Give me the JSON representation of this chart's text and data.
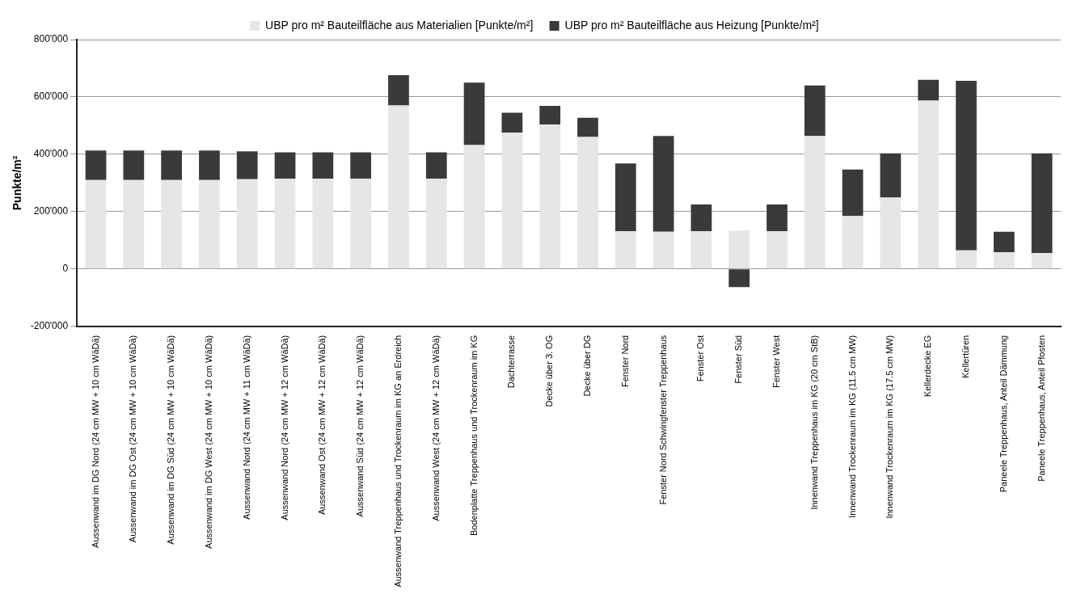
{
  "chart_data": {
    "type": "bar",
    "stacked": true,
    "ylabel": "Punkte/m²",
    "categories": [
      "Aussenwand im DG Nord (24 cm MW + 10 cm WäDä)",
      "Aussenwand im DG Ost (24 cm MW + 10 cm WäDä)",
      "Aussenwand im DG Süd (24 cm MW + 10 cm WäDä)",
      "Aussenwand im DG West (24 cm MW + 10 cm WäDä)",
      "Aussenwand Nord (24 cm MW + 11 cm WäDä)",
      "Aussenwand Nord (24 cm MW + 12 cm WäDä)",
      "Aussenwand Ost (24 cm MW + 12 cm WäDä)",
      "Aussenwand Süd (24 cm MW + 12 cm WäDä)",
      "Aussenwand Treppenhaus und Trockenraum im KG an Erdreich",
      "Aussenwand West (24 cm MW + 12 cm WäDä)",
      "Bodenplatte Treppenhaus und Trockenraum im KG",
      "Dachterrasse",
      "Decke über 3. OG",
      "Decke über DG",
      "Fenster Nord",
      "Fenster Nord Schwingfenster Treppenhaus",
      "Fenster Ost",
      "Fenster Süd",
      "Fenster West",
      "Innenwand Treppenhaus im KG (20 cm StB)",
      "Innenwand Trockenraum im KG (11.5 cm MW)",
      "Innenwand Trockenraum im KG (17.5 cm MW)",
      "Kellerdecke EG",
      "Kellertüren",
      "Paneele Treppenhaus, Anteil Dämmung",
      "Paneele Treppenhaus, Anteil Pfosten"
    ],
    "series": [
      {
        "name": "UBP pro m² Bauteilfläche aus Materialien [Punkte/m²]",
        "color": "#e6e6e6",
        "values": [
          310000,
          310000,
          310000,
          310000,
          313000,
          315000,
          315000,
          315000,
          570000,
          315000,
          432000,
          476000,
          504000,
          460000,
          132000,
          130000,
          132000,
          134000,
          132000,
          464000,
          185000,
          249000,
          587000,
          65000,
          58000,
          55000
        ]
      },
      {
        "name": "UBP pro m² Bauteilfläche aus Heizung [Punkte/m²]",
        "color": "#3a3a3a",
        "values": [
          103000,
          103000,
          103000,
          103000,
          97000,
          92000,
          92000,
          92000,
          106000,
          92000,
          218000,
          69000,
          65000,
          67000,
          236000,
          334000,
          93000,
          -63000,
          93000,
          176000,
          162000,
          154000,
          73000,
          591000,
          72000,
          348000
        ]
      }
    ],
    "ylim": [
      -200000,
      800000
    ],
    "yticks": [
      {
        "value": -200000,
        "label": "-200'000"
      },
      {
        "value": 0,
        "label": "0"
      },
      {
        "value": 200000,
        "label": "200'000"
      },
      {
        "value": 400000,
        "label": "400'000"
      },
      {
        "value": 600000,
        "label": "600'000"
      },
      {
        "value": 800000,
        "label": "800'000"
      }
    ],
    "grid": "y",
    "legend": "top"
  }
}
